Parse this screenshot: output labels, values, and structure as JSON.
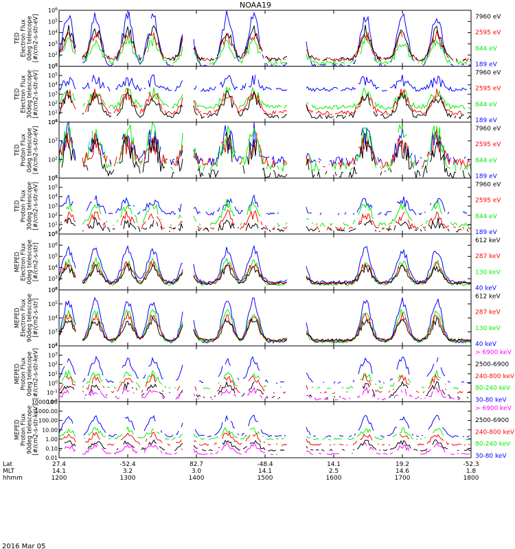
{
  "title": "NOAA19",
  "colors": {
    "blue": "#0000ff",
    "red": "#ff0000",
    "green": "#00ee00",
    "black": "#000000",
    "magenta": "#ff00ff",
    "frame": "#000000"
  },
  "panels": [
    {
      "ylabel": [
        "TED",
        "Electron Flux",
        "0deg telescope",
        "[#/cm2-s-str-eV]"
      ],
      "ticks": [
        "10^1",
        "10^2",
        "10^3",
        "10^4",
        "10^5",
        "10^6"
      ],
      "ymin_exp": 1,
      "ymax_exp": 6,
      "legend": [
        {
          "text": "7960 eV",
          "color": "#000000"
        },
        {
          "text": "2595 eV",
          "color": "#ff0000"
        },
        {
          "text": "844 eV",
          "color": "#00ee00"
        },
        {
          "text": "189 eV",
          "color": "#0000ff"
        }
      ],
      "base": [
        1.6,
        1.6,
        1.3,
        1.0
      ],
      "peak": [
        4.2,
        3.8,
        3.2,
        5.5
      ],
      "noise": 0.35,
      "sparse": 0.15
    },
    {
      "ylabel": [
        "TED",
        "Electron Flux",
        "30deg telescope",
        "[#/cm2-s-str-eV]"
      ],
      "ticks": [
        "10^0",
        "10^1",
        "10^2",
        "10^3",
        "10^4",
        "10^5",
        "10^6"
      ],
      "ymin_exp": 0,
      "ymax_exp": 6,
      "legend": [
        {
          "text": "7960 eV",
          "color": "#000000"
        },
        {
          "text": "2595 eV",
          "color": "#ff0000"
        },
        {
          "text": "844 eV",
          "color": "#00ee00"
        },
        {
          "text": "189 eV",
          "color": "#0000ff"
        }
      ],
      "base": [
        0.6,
        1.0,
        1.6,
        3.5
      ],
      "peak": [
        2.8,
        3.0,
        3.2,
        4.5
      ],
      "noise": 0.45,
      "sparse": 0.1
    },
    {
      "ylabel": [
        "TED",
        "Proton Flux",
        "0deg telescope",
        "[#/cm2-s-str-eV]"
      ],
      "ticks": [
        "10^1",
        "10^2",
        "10^3",
        "10^4"
      ],
      "ymin_exp": 1,
      "ymax_exp": 4,
      "legend": [
        {
          "text": "7960 eV",
          "color": "#000000"
        },
        {
          "text": "2595 eV",
          "color": "#ff0000"
        },
        {
          "text": "844 eV",
          "color": "#00ee00"
        },
        {
          "text": "189 eV",
          "color": "#0000ff"
        }
      ],
      "base": [
        1.2,
        1.8,
        1.6,
        1.9
      ],
      "peak": [
        2.8,
        3.0,
        3.5,
        3.3
      ],
      "noise": 0.5,
      "sparse": 0.25
    },
    {
      "ylabel": [
        "TED",
        "Proton Flux",
        "30deg telescope",
        "[#/cm2-s-str-eV]"
      ],
      "ticks": [
        "10^0",
        "10^1",
        "10^2",
        "10^3",
        "10^4",
        "10^5",
        "10^6"
      ],
      "ymin_exp": 0,
      "ymax_exp": 6,
      "legend": [
        {
          "text": "7960 eV",
          "color": "#000000"
        },
        {
          "text": "2595 eV",
          "color": "#ff0000"
        },
        {
          "text": "844 eV",
          "color": "#00ee00"
        },
        {
          "text": "189 eV",
          "color": "#0000ff"
        }
      ],
      "base": [
        0.4,
        0.6,
        1.0,
        2.2
      ],
      "peak": [
        1.2,
        2.0,
        3.2,
        3.6
      ],
      "noise": 0.4,
      "sparse": 0.35
    },
    {
      "ylabel": [
        "MEPED",
        "Electron Flux",
        "0deg telescope",
        "[#/cm2-s-str]"
      ],
      "ticks": [
        "10^2",
        "10^3",
        "10^4",
        "10^5",
        "10^6",
        "10^7"
      ],
      "ymin_exp": 2,
      "ymax_exp": 7,
      "legend": [
        {
          "text": "612 keV",
          "color": "#000000"
        },
        {
          "text": "287 keV",
          "color": "#ff0000"
        },
        {
          "text": "130 keV",
          "color": "#00ee00"
        },
        {
          "text": "40 keV",
          "color": "#0000ff"
        }
      ],
      "base": [
        2.6,
        2.6,
        2.5,
        2.7
      ],
      "peak": [
        4.0,
        4.3,
        4.5,
        5.6
      ],
      "noise": 0.25,
      "sparse": 0.0
    },
    {
      "ylabel": [
        "MEPED",
        "Electron Flux",
        "90deg telescope",
        "[#/cm2-s-str]"
      ],
      "ticks": [
        "10^2",
        "10^3",
        "10^4",
        "10^5",
        "10^6"
      ],
      "ymin_exp": 2,
      "ymax_exp": 6,
      "legend": [
        {
          "text": "612 keV",
          "color": "#000000"
        },
        {
          "text": "287 keV",
          "color": "#ff0000"
        },
        {
          "text": "130 keV",
          "color": "#00ee00"
        },
        {
          "text": "40 keV",
          "color": "#0000ff"
        }
      ],
      "base": [
        2.4,
        2.4,
        2.3,
        2.3
      ],
      "peak": [
        3.8,
        4.1,
        4.4,
        5.2
      ],
      "noise": 0.2,
      "sparse": 0.0
    },
    {
      "ylabel": [
        "MEPED",
        "Proton Flux",
        "0deg telescope",
        "[#/cm2-s-str-keV]"
      ],
      "ticks": [
        "10^-2",
        "10^-1",
        "10^0",
        "10^1",
        "10^2",
        "10^3",
        "10^4"
      ],
      "ymin_exp": -2,
      "ymax_exp": 4,
      "legend": [
        {
          "text": "> 6900 keV",
          "color": "#ff00ff"
        },
        {
          "text": "2500-6900",
          "color": "#000000"
        },
        {
          "text": "240-800 keV",
          "color": "#ff0000"
        },
        {
          "text": "80-240 keV",
          "color": "#00ee00"
        },
        {
          "text": "30-80 keV",
          "color": "#0000ff"
        }
      ],
      "base": [
        -1.7,
        -1.5,
        -1.0,
        -0.5,
        0.1
      ],
      "peak": [
        -0.8,
        -0.2,
        0.6,
        1.0,
        2.5
      ],
      "noise": 0.25,
      "sparse": 0.5
    },
    {
      "ylabel": [
        "MEPED",
        "Proton Flux",
        "90deg telescope",
        "[#/cm2-s-str-keV]"
      ],
      "ticks": [
        "0.01",
        "0.10",
        "1.00",
        "10.00",
        "100.00",
        "1000.00",
        "10000.00"
      ],
      "ymin_exp": -2,
      "ymax_exp": 4,
      "legend": [
        {
          "text": "> 6900 keV",
          "color": "#ff00ff"
        },
        {
          "text": "2500-6900",
          "color": "#000000"
        },
        {
          "text": "240-800 keV",
          "color": "#ff0000"
        },
        {
          "text": "80-240 keV",
          "color": "#00ee00"
        },
        {
          "text": "30-80 keV",
          "color": "#0000ff"
        }
      ],
      "base": [
        -1.6,
        -1.2,
        -0.6,
        0.0,
        0.3
      ],
      "peak": [
        -0.7,
        -0.3,
        0.5,
        1.0,
        2.3
      ],
      "noise": 0.2,
      "sparse": 0.3
    }
  ],
  "xaxis": {
    "rows": [
      {
        "label": "Lat",
        "values": [
          "27.4",
          "-52.4",
          "82.7",
          "-48.4",
          "14.1",
          "19.2",
          "-52.3"
        ]
      },
      {
        "label": "MLT",
        "values": [
          "14.1",
          "3.2",
          "3.0",
          "14.1",
          "2.5",
          "14.6",
          "1.8"
        ]
      },
      {
        "label": "hhmm",
        "values": [
          "1200",
          "1300",
          "1400",
          "1500",
          "1600",
          "1700",
          "1800"
        ]
      }
    ],
    "date": "2016 Mar 05"
  },
  "chart_data": {
    "type": "line",
    "title": "NOAA19",
    "x": [
      "1200",
      "1300",
      "1400",
      "1500",
      "1600",
      "1700",
      "1800"
    ],
    "xlabel": "hhmm",
    "ylog": true,
    "passes_hhmm": [
      1208,
      1232,
      1300,
      1322,
      1352,
      1427,
      1450,
      1530,
      1628,
      1700,
      1730
    ],
    "series": [
      {
        "panel": "TED Electron Flux 0deg",
        "name": "7960 eV",
        "peak_exp": 4.2
      },
      {
        "panel": "TED Electron Flux 0deg",
        "name": "2595 eV",
        "peak_exp": 3.8
      },
      {
        "panel": "TED Electron Flux 0deg",
        "name": "844 eV",
        "peak_exp": 3.2
      },
      {
        "panel": "TED Electron Flux 0deg",
        "name": "189 eV",
        "peak_exp": 5.5
      },
      {
        "panel": "MEPED Electron Flux 0deg",
        "name": "612 keV",
        "peak_exp": 4.0
      },
      {
        "panel": "MEPED Electron Flux 0deg",
        "name": "287 keV",
        "peak_exp": 4.3
      },
      {
        "panel": "MEPED Electron Flux 0deg",
        "name": "130 keV",
        "peak_exp": 4.5
      },
      {
        "panel": "MEPED Electron Flux 0deg",
        "name": "40 keV",
        "peak_exp": 5.6
      },
      {
        "panel": "MEPED Proton Flux 0deg",
        "name": "> 6900 keV",
        "peak_exp": -0.8
      },
      {
        "panel": "MEPED Proton Flux 0deg",
        "name": "30-80 keV",
        "peak_exp": 2.5
      }
    ]
  }
}
